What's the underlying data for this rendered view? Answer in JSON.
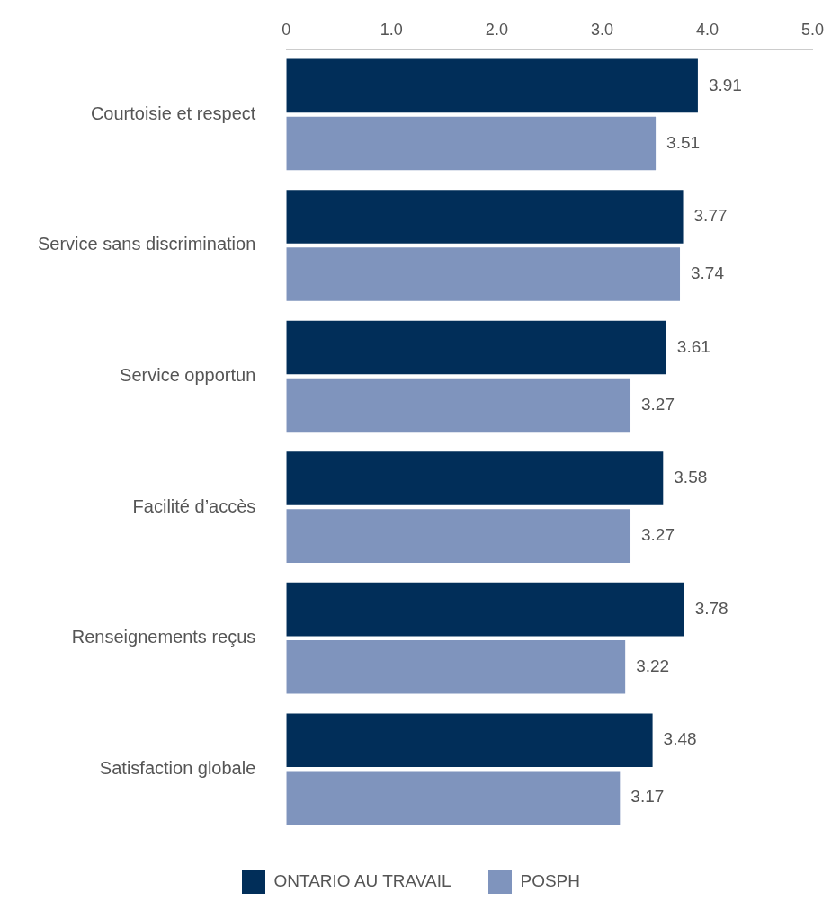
{
  "chart_data": {
    "type": "bar",
    "orientation": "horizontal",
    "categories": [
      "Courtoisie et respect",
      "Service sans discrimination",
      "Service opportun",
      "Facilité d’accès",
      "Renseignements reçus",
      "Satisfaction globale"
    ],
    "series": [
      {
        "name": "ONTARIO AU TRAVAIL",
        "color": "#012e59",
        "values": [
          3.91,
          3.77,
          3.61,
          3.58,
          3.78,
          3.48
        ]
      },
      {
        "name": "POSPH",
        "color": "#7f94bd",
        "values": [
          3.51,
          3.74,
          3.27,
          3.27,
          3.22,
          3.17
        ]
      }
    ],
    "xlim": [
      0,
      5
    ],
    "xticks": [
      0,
      {
        "value": 1,
        "label": "1.0"
      },
      {
        "value": 2,
        "label": "2.0"
      },
      {
        "value": 3,
        "label": "3.0"
      },
      {
        "value": 4,
        "label": "4.0"
      },
      {
        "value": 5,
        "label": "5.0"
      }
    ],
    "data_labels": true,
    "legend": "bottom"
  }
}
